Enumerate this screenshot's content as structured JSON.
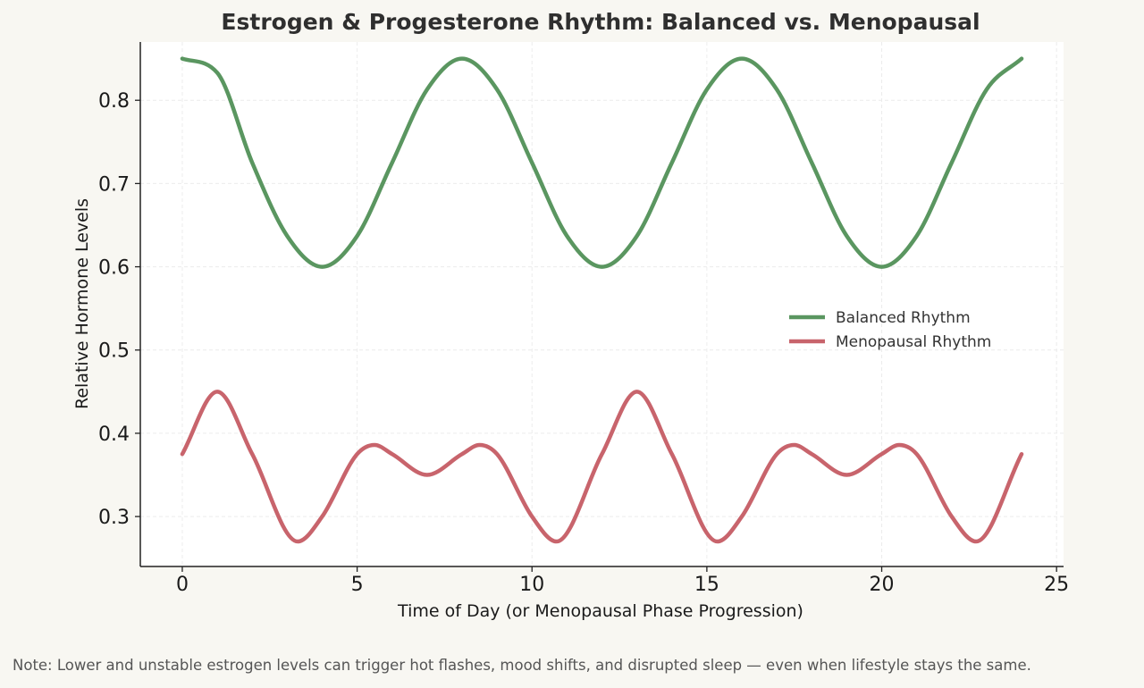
{
  "chart_data": {
    "type": "line",
    "title": "Estrogen & Progesterone Rhythm: Balanced vs. Menopausal",
    "xlabel": "Time of Day (or Menopausal Phase Progression)",
    "ylabel": "Relative Hormone Levels",
    "xlim": [
      -1.2,
      25.2
    ],
    "ylim": [
      0.24,
      0.87
    ],
    "xticks": [
      0,
      5,
      10,
      15,
      20,
      25
    ],
    "xtick_labels": [
      "0",
      "5",
      "10",
      "15",
      "20",
      "25"
    ],
    "yticks": [
      0.3,
      0.4,
      0.5,
      0.6,
      0.7,
      0.8
    ],
    "ytick_labels": [
      "0.3",
      "0.4",
      "0.5",
      "0.6",
      "0.7",
      "0.8"
    ],
    "grid": true,
    "legend_position": "center-right",
    "series": [
      {
        "name": "Balanced Rhythm",
        "color": "#5a9660",
        "x": [
          0,
          1,
          2,
          3,
          4,
          5,
          6,
          7,
          8,
          9,
          10,
          11,
          12,
          13,
          14,
          15,
          16,
          17,
          18,
          19,
          20,
          21,
          22,
          23,
          24
        ],
        "y": [
          0.85,
          0.833,
          0.725,
          0.637,
          0.6,
          0.637,
          0.725,
          0.813,
          0.85,
          0.813,
          0.725,
          0.637,
          0.6,
          0.637,
          0.725,
          0.813,
          0.85,
          0.813,
          0.725,
          0.637,
          0.6,
          0.637,
          0.725,
          0.813,
          0.85
        ]
      },
      {
        "name": "Menopausal Rhythm",
        "color": "#c8646c",
        "x": [
          0,
          1,
          2,
          3.3,
          4,
          5,
          5.5,
          6,
          7,
          8,
          8.5,
          9,
          10,
          10.7,
          12,
          13,
          14,
          15.3,
          16,
          17,
          17.5,
          18,
          19,
          20,
          20.5,
          21,
          22,
          22.7,
          24
        ],
        "y": [
          0.375,
          0.45,
          0.375,
          0.27,
          0.3,
          0.375,
          0.386,
          0.375,
          0.35,
          0.375,
          0.386,
          0.375,
          0.3,
          0.27,
          0.375,
          0.45,
          0.375,
          0.27,
          0.3,
          0.375,
          0.386,
          0.375,
          0.35,
          0.375,
          0.386,
          0.375,
          0.3,
          0.27,
          0.375
        ]
      }
    ]
  },
  "note": "Note: Lower and unstable estrogen levels can trigger hot flashes, mood shifts, and disrupted sleep — even when lifestyle stays the same."
}
